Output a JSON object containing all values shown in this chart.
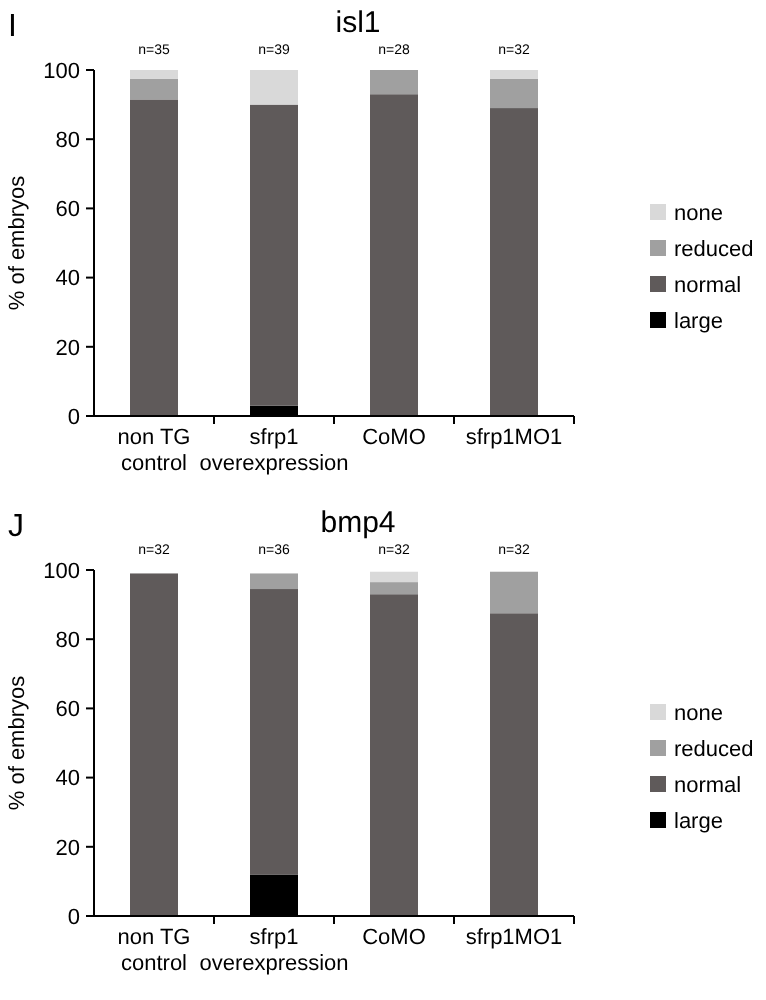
{
  "chart_data": [
    {
      "type": "bar",
      "title": "isl1",
      "ylabel": "% of embryos",
      "stacked": true,
      "legend": "right",
      "categories": [
        "non TG\ncontrol",
        "sfrp1\noverexpression",
        "CoMO",
        "sfrp1MO1"
      ],
      "ylim": [
        0,
        100
      ],
      "yticks": [
        0,
        20,
        40,
        60,
        80,
        100
      ],
      "series": [
        {
          "name": "large",
          "color": "#000000",
          "values": [
            0,
            3,
            0,
            0
          ]
        },
        {
          "name": "normal",
          "color": "#5f5a5a",
          "values": [
            91.5,
            87,
            93,
            89
          ]
        },
        {
          "name": "reduced",
          "color": "#a0a0a0",
          "values": [
            6,
            0,
            7,
            8.5
          ]
        },
        {
          "name": "none",
          "color": "#d9d9d9",
          "values": [
            2.5,
            10,
            0,
            2.5
          ]
        }
      ],
      "annotations": [
        "I",
        "n=35",
        "n=39",
        "n=28",
        "n=32"
      ]
    },
    {
      "type": "bar",
      "title": "bmp4",
      "ylabel": "% of embryos",
      "stacked": true,
      "legend": "right",
      "categories": [
        "non TG\ncontrol",
        "sfrp1\noverexpression",
        "CoMO",
        "sfrp1MO1"
      ],
      "ylim": [
        0,
        100
      ],
      "yticks": [
        0,
        20,
        40,
        60,
        80,
        100
      ],
      "series": [
        {
          "name": "large",
          "color": "#000000",
          "values": [
            0,
            12,
            0,
            0
          ]
        },
        {
          "name": "normal",
          "color": "#5f5a5a",
          "values": [
            99,
            82.5,
            93,
            87.5
          ]
        },
        {
          "name": "reduced",
          "color": "#a0a0a0",
          "values": [
            0,
            4.5,
            3.5,
            12
          ]
        },
        {
          "name": "none",
          "color": "#d9d9d9",
          "values": [
            0,
            0,
            3,
            0
          ]
        }
      ],
      "annotations": [
        "J",
        "n=32",
        "n=36",
        "n=32",
        "n=32"
      ]
    }
  ]
}
